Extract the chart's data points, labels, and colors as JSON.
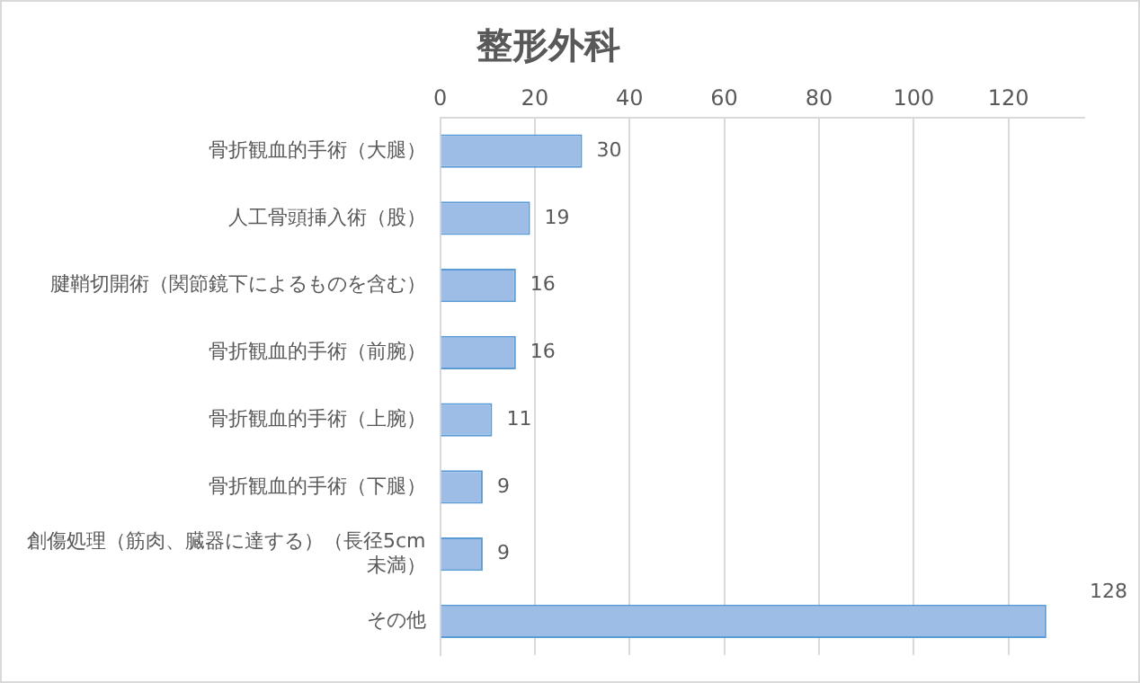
{
  "chart_data": {
    "type": "bar",
    "orientation": "horizontal",
    "title": "整形外科",
    "categories": [
      "骨折観血的手術（大腿）",
      "人工骨頭挿入術（股）",
      "腱鞘切開術（関節鏡下によるものを含む）",
      "骨折観血的手術（前腕）",
      "骨折観血的手術（上腕）",
      "骨折観血的手術（下腿）",
      "創傷処理（筋肉、臓器に達する）（長径5cm未満）",
      "その他"
    ],
    "values": [
      30,
      19,
      16,
      16,
      11,
      9,
      9,
      128
    ],
    "color": "#9dbde6",
    "xlim": [
      0,
      136
    ],
    "xticks": [
      0,
      20,
      40,
      60,
      80,
      100,
      120
    ],
    "grid": "x",
    "data_labels": true,
    "legend": false
  }
}
